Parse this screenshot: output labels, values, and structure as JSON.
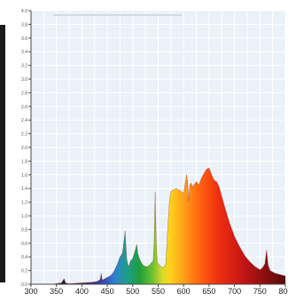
{
  "chart_data": {
    "type": "area",
    "title": "",
    "xlabel": "",
    "ylabel": "",
    "x_ticks": [
      300,
      350,
      400,
      450,
      500,
      550,
      600,
      650,
      700,
      750,
      800
    ],
    "y_tick_labels": [
      "0.0",
      "0.2",
      "0.4",
      "0.6",
      "0.8",
      "1.0",
      "1.2",
      "1.4",
      "1.6",
      "1.8",
      "2.0",
      "2.2",
      "2.4",
      "2.6",
      "2.8",
      "3.0",
      "3.2",
      "3.4",
      "3.6",
      "3.8",
      "4.0"
    ],
    "xlim": [
      300,
      800
    ],
    "ylim": [
      0,
      4.0
    ],
    "grid": true,
    "series": [
      {
        "wavelength": [
          300,
          320,
          340,
          360,
          365,
          368,
          372,
          380,
          400,
          420,
          430,
          436,
          438,
          440,
          450,
          455,
          460,
          465,
          470,
          475,
          480,
          485,
          488,
          490,
          492,
          495,
          500,
          505,
          508,
          510,
          512,
          515,
          520,
          525,
          530,
          535,
          540,
          542,
          544,
          546,
          548,
          550,
          555,
          560,
          565,
          568,
          572,
          575,
          580,
          585,
          590,
          595,
          600,
          603,
          606,
          608,
          610,
          612,
          615,
          618,
          620,
          625,
          630,
          635,
          640,
          645,
          650,
          655,
          660,
          665,
          670,
          675,
          680,
          690,
          700,
          710,
          720,
          730,
          740,
          750,
          755,
          760,
          763,
          766,
          770,
          780,
          790,
          800
        ],
        "intensity": [
          0.0,
          0.0,
          0.0,
          0.02,
          0.08,
          0.02,
          0.01,
          0.01,
          0.02,
          0.03,
          0.04,
          0.07,
          0.16,
          0.06,
          0.1,
          0.12,
          0.15,
          0.22,
          0.3,
          0.4,
          0.46,
          0.78,
          0.38,
          0.3,
          0.25,
          0.33,
          0.38,
          0.5,
          0.58,
          0.45,
          0.4,
          0.34,
          0.28,
          0.26,
          0.26,
          0.3,
          0.34,
          0.6,
          1.35,
          0.7,
          0.34,
          0.3,
          0.26,
          0.24,
          0.3,
          0.7,
          1.2,
          1.36,
          1.38,
          1.4,
          1.38,
          1.36,
          1.33,
          1.47,
          1.6,
          1.48,
          1.22,
          1.45,
          1.48,
          1.42,
          1.45,
          1.5,
          1.45,
          1.55,
          1.62,
          1.68,
          1.7,
          1.6,
          1.52,
          1.5,
          1.42,
          1.28,
          1.15,
          0.9,
          0.7,
          0.55,
          0.42,
          0.33,
          0.26,
          0.21,
          0.24,
          0.3,
          0.5,
          0.28,
          0.2,
          0.16,
          0.14,
          0.12
        ]
      }
    ]
  }
}
